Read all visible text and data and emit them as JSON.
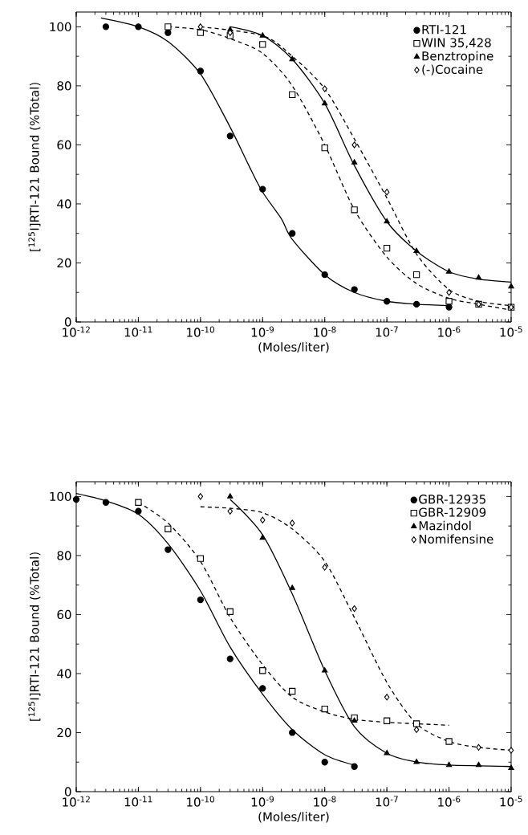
{
  "chart_data": [
    {
      "type": "scatter",
      "xlabel": "(Moles/liter)",
      "ylabel": "[$^{125}$I]RTI-121 Bound (%Total)",
      "log": "x",
      "legend": "top right",
      "xlim": [
        1e-12,
        1e-05
      ],
      "ylim": [
        0,
        105
      ],
      "xticks": [
        {
          "value": 1e-12,
          "label": "10$^{-12}$"
        },
        {
          "value": 1e-11,
          "label": "10$^{-11}$"
        },
        {
          "value": 1e-10,
          "label": "10$^{-10}$"
        },
        {
          "value": 1e-09,
          "label": "10$^{-9}$"
        },
        {
          "value": 1e-08,
          "label": "10$^{-8}$"
        },
        {
          "value": 1e-07,
          "label": "10$^{-7}$"
        },
        {
          "value": 1e-06,
          "label": "10$^{-6}$"
        },
        {
          "value": 1e-05,
          "label": "10$^{-5}$"
        }
      ],
      "yticks": [
        0,
        20,
        40,
        60,
        80,
        100
      ],
      "series": [
        {
          "name": "RTI-121",
          "type": "scatter",
          "marker": "circle",
          "color": "#000000",
          "x": [
            3e-12,
            1e-11,
            3e-11,
            1e-10,
            3e-10,
            1e-09,
            3e-09,
            1e-08,
            3e-08,
            1e-07,
            3e-07,
            1e-06
          ],
          "values": [
            100,
            100,
            98,
            85,
            63,
            45,
            30,
            16,
            11,
            7,
            6,
            5
          ]
        },
        {
          "name": "WIN 35,428",
          "type": "scatter",
          "marker": "square",
          "color": "#000000",
          "x": [
            3e-11,
            1e-10,
            3e-10,
            1e-09,
            3e-09,
            1e-08,
            3e-08,
            1e-07,
            3e-07,
            1e-06,
            3e-06,
            1e-05
          ],
          "values": [
            100,
            98,
            97,
            94,
            77,
            59,
            38,
            25,
            16,
            7,
            6,
            5
          ]
        },
        {
          "name": "Benztropine",
          "type": "scatter",
          "marker": "triangle",
          "color": "#000000",
          "x": [
            3e-10,
            1e-09,
            3e-09,
            1e-08,
            3e-08,
            1e-07,
            3e-07,
            1e-06,
            3e-06,
            1e-05
          ],
          "values": [
            99,
            97,
            89,
            74,
            54,
            34,
            24,
            17,
            15,
            12
          ]
        },
        {
          "name": "(-)Cocaine",
          "type": "scatter",
          "marker": "diamond",
          "color": "#000000",
          "x": [
            1e-10,
            3e-10,
            1e-08,
            3e-08,
            1e-07,
            1e-06,
            3e-06,
            1e-05
          ],
          "values": [
            100,
            98,
            79,
            60,
            44,
            10,
            6,
            5
          ]
        },
        {
          "type": "line",
          "line_style": "solid",
          "color": "#000000",
          "x": [
            2.5e-12,
            1e-11,
            3e-11,
            1e-10,
            3e-10,
            6e-10,
            1e-09,
            2e-09,
            3e-09,
            1e-08,
            3e-08,
            1e-07,
            3e-07,
            1e-06
          ],
          "values": [
            103,
            100,
            95,
            84,
            66,
            53,
            44,
            35,
            28,
            16,
            10,
            7,
            6,
            5.5
          ]
        },
        {
          "type": "line",
          "line_style": "dashed",
          "color": "#000000",
          "x": [
            3e-11,
            1e-10,
            3e-10,
            1e-09,
            3e-09,
            1e-08,
            3e-08,
            1e-07,
            3e-07,
            1e-06,
            3e-06,
            1e-05
          ],
          "values": [
            100,
            99,
            96,
            91,
            80,
            60,
            38,
            22,
            13,
            8,
            6,
            4
          ]
        },
        {
          "type": "line",
          "line_style": "solid",
          "color": "#000000",
          "x": [
            3e-10,
            1e-09,
            3e-09,
            1e-08,
            3e-08,
            1e-07,
            3e-07,
            1e-06,
            3e-06,
            1e-05
          ],
          "values": [
            100,
            97,
            89,
            74,
            53,
            34,
            24,
            17,
            14.5,
            13.5
          ]
        },
        {
          "type": "line",
          "line_style": "dashed",
          "color": "#000000",
          "x": [
            1e-10,
            1e-09,
            3e-09,
            1e-08,
            3e-08,
            1e-07,
            3e-07,
            1e-06,
            3e-06,
            1e-05
          ],
          "values": [
            100,
            97,
            90,
            79,
            62,
            42,
            23,
            11,
            7,
            5.5
          ]
        }
      ]
    },
    {
      "type": "scatter",
      "xlabel": "(Moles/liter)",
      "ylabel": "[$^{125}$I]RTI-121 Bound (%Total)",
      "log": "x",
      "legend": "top right",
      "xlim": [
        1e-12,
        1e-05
      ],
      "ylim": [
        0,
        105
      ],
      "xticks": [
        {
          "value": 1e-12,
          "label": "10$^{-12}$"
        },
        {
          "value": 1e-11,
          "label": "10$^{-11}$"
        },
        {
          "value": 1e-10,
          "label": "10$^{-10}$"
        },
        {
          "value": 1e-09,
          "label": "10$^{-9}$"
        },
        {
          "value": 1e-08,
          "label": "10$^{-8}$"
        },
        {
          "value": 1e-07,
          "label": "10$^{-7}$"
        },
        {
          "value": 1e-06,
          "label": "10$^{-6}$"
        },
        {
          "value": 1e-05,
          "label": "10$^{-5}$"
        }
      ],
      "yticks": [
        0,
        20,
        40,
        60,
        80,
        100
      ],
      "series": [
        {
          "name": "GBR-12935",
          "type": "scatter",
          "marker": "circle",
          "color": "#000000",
          "x": [
            1e-12,
            3e-12,
            1e-11,
            3e-11,
            1e-10,
            3e-10,
            1e-09,
            3e-09,
            1e-08,
            3e-08
          ],
          "values": [
            99,
            98,
            95,
            82,
            65,
            45,
            35,
            20,
            10,
            8.5
          ]
        },
        {
          "name": "GBR-12909",
          "type": "scatter",
          "marker": "square",
          "color": "#000000",
          "x": [
            1e-11,
            3e-11,
            1e-10,
            3e-10,
            1e-09,
            3e-09,
            1e-08,
            3e-08,
            1e-07,
            3e-07,
            1e-06
          ],
          "values": [
            98,
            89,
            79,
            61,
            41,
            34,
            28,
            25,
            24,
            23,
            17
          ]
        },
        {
          "name": "Mazindol",
          "type": "scatter",
          "marker": "triangle",
          "color": "#000000",
          "x": [
            3e-10,
            1e-09,
            3e-09,
            1e-08,
            3e-08,
            1e-07,
            3e-07,
            1e-06,
            3e-06,
            1e-05
          ],
          "values": [
            100,
            86,
            69,
            41,
            24,
            13,
            10,
            9,
            9,
            8
          ]
        },
        {
          "name": "Nomifensine",
          "type": "scatter",
          "marker": "diamond",
          "color": "#000000",
          "x": [
            1e-10,
            3e-10,
            1e-09,
            3e-09,
            1e-08,
            3e-08,
            1e-07,
            3e-07,
            3e-06,
            1e-05
          ],
          "values": [
            100,
            95,
            92,
            91,
            76,
            62,
            32,
            21,
            15,
            14
          ]
        },
        {
          "type": "line",
          "line_style": "solid",
          "color": "#000000",
          "x": [
            1e-12,
            3e-12,
            1e-11,
            3e-11,
            1e-10,
            3e-10,
            1e-09,
            3e-09,
            1e-08,
            3e-08
          ],
          "values": [
            101,
            98.5,
            94,
            84,
            68,
            49,
            33,
            21,
            12.5,
            9
          ]
        },
        {
          "type": "line",
          "line_style": "dashed",
          "color": "#000000",
          "x": [
            1e-11,
            3e-11,
            1e-10,
            3e-10,
            1e-09,
            3e-09,
            1e-08,
            3e-08,
            1e-07,
            3e-07,
            1e-06
          ],
          "values": [
            98,
            91,
            78,
            59,
            43,
            32,
            27,
            24.5,
            23.5,
            23,
            22.5
          ]
        },
        {
          "type": "line",
          "line_style": "solid",
          "color": "#000000",
          "x": [
            3e-10,
            1e-09,
            3e-09,
            1e-08,
            3e-08,
            1e-07,
            3e-07,
            1e-06,
            1e-05
          ],
          "values": [
            99,
            87,
            67,
            41,
            22,
            13,
            10,
            9,
            8.5
          ]
        },
        {
          "type": "line",
          "line_style": "dashed",
          "color": "#000000",
          "x": [
            1e-10,
            3e-10,
            1e-09,
            3e-09,
            1e-08,
            3e-08,
            1e-07,
            3e-07,
            1e-06,
            3e-06,
            1e-05
          ],
          "values": [
            96.5,
            96,
            94.5,
            89,
            78,
            59,
            37,
            23,
            17,
            15,
            14
          ]
        }
      ]
    }
  ]
}
